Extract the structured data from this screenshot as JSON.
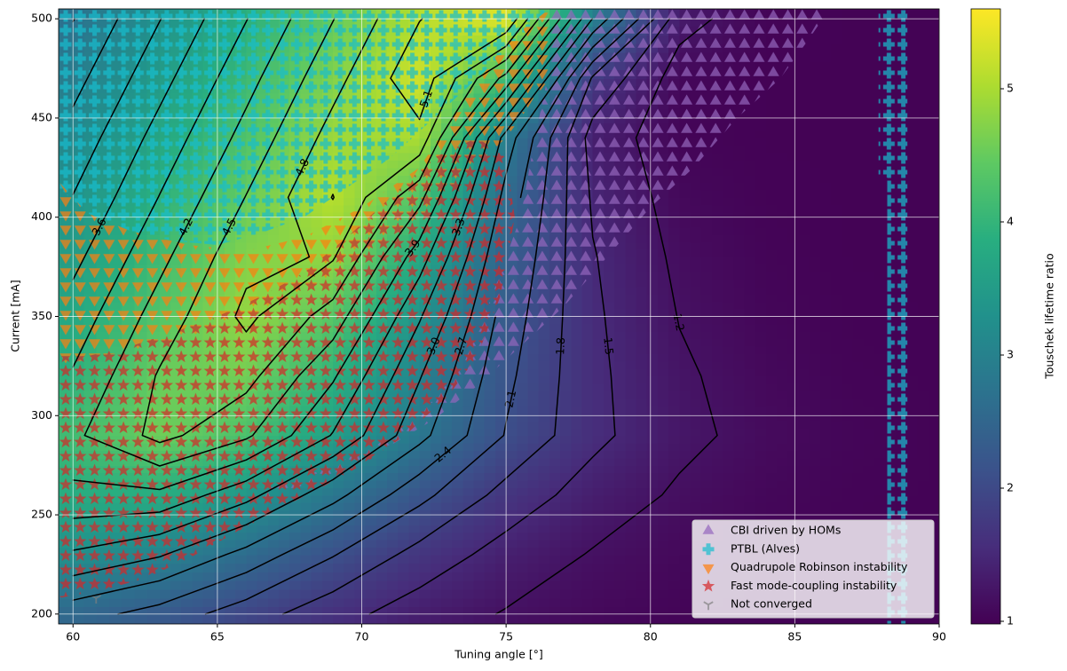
{
  "chart_data": {
    "type": "contour",
    "xlabel": "Tuning angle [°]",
    "ylabel": "Current [mA]",
    "colorbar_label": "Touschek lifetime ratio",
    "colormap": "viridis",
    "xlim": [
      59.5,
      90
    ],
    "ylim": [
      195,
      505
    ],
    "xticks": [
      60,
      65,
      70,
      75,
      80,
      85,
      90
    ],
    "yticks": [
      200,
      250,
      300,
      350,
      400,
      450,
      500
    ],
    "grid": true,
    "zlim": [
      0.98,
      5.6
    ],
    "zticks": [
      1,
      2,
      3,
      4,
      5
    ],
    "z_x": [
      60,
      63,
      66,
      69,
      72,
      75,
      78,
      81,
      84,
      87,
      90
    ],
    "z_y": [
      200,
      230,
      260,
      290,
      320,
      350,
      380,
      410,
      440,
      470,
      500
    ],
    "z": [
      [
        2.53,
        2.28,
        1.94,
        1.61,
        1.35,
        1.18,
        1.08,
        1.03,
        1.01,
        1.0,
        1.0
      ],
      [
        3.26,
        3.03,
        2.6,
        2.12,
        1.69,
        1.38,
        1.18,
        1.08,
        1.03,
        1.01,
        1.0
      ],
      [
        3.82,
        3.83,
        3.4,
        2.8,
        2.19,
        1.69,
        1.36,
        1.16,
        1.06,
        1.02,
        1.01
      ],
      [
        4.14,
        4.59,
        4.25,
        3.58,
        2.79,
        2.08,
        1.58,
        1.27,
        1.11,
        1.04,
        1.01
      ],
      [
        3.93,
        4.53,
        4.6,
        3.94,
        3.02,
        2.17,
        1.57,
        1.24,
        1.08,
        1.02,
        1.01
      ],
      [
        3.73,
        4.33,
        4.87,
        4.37,
        3.33,
        2.27,
        1.55,
        1.19,
        1.05,
        1.01,
        1.0
      ],
      [
        3.52,
        4.12,
        4.72,
        4.83,
        3.74,
        2.4,
        1.52,
        1.14,
        1.03,
        1.0,
        1.0
      ],
      [
        3.31,
        3.91,
        4.51,
        5.11,
        4.29,
        2.59,
        1.46,
        1.08,
        1.01,
        1.0,
        1.0
      ],
      [
        3.11,
        3.71,
        4.3,
        4.91,
        5.01,
        2.87,
        1.37,
        1.03,
        1.0,
        1.0,
        1.0
      ],
      [
        2.9,
        3.5,
        4.1,
        4.7,
        5.3,
        4.1,
        1.76,
        1.06,
        1.0,
        1.0,
        1.0
      ],
      [
        2.69,
        3.29,
        3.89,
        4.49,
        5.09,
        5.4,
        2.99,
        1.31,
        1.02,
        1.0,
        1.0
      ]
    ],
    "contour_levels": [
      1.2,
      1.5,
      1.8,
      2.1,
      2.4,
      2.7,
      {
        "value": 3,
        "label": "3.0"
      },
      3.3,
      3.6,
      3.9,
      4.2,
      4.5,
      4.8,
      5.1,
      5.4
    ],
    "contour_color": "#000000",
    "legend": "lower right",
    "series": [
      {
        "name": "CBI driven by HOMs",
        "color": "#9467bd",
        "marker": "^",
        "regions": [
          {
            "x": [
              76.5,
              86.2,
              85.5,
              84.5,
              83,
              81.5,
              80,
              78.5,
              77,
              75.5,
              74,
              72.5,
              71,
              69.5,
              68,
              66.5,
              66.5,
              68.5,
              70.5,
              72,
              73.5,
              74.5,
              75.5,
              76,
              76.5
            ],
            "y": [
              505,
              505,
              490,
              470,
              450,
              425,
              405,
              380,
              355,
              335,
              315,
              298,
              285,
              274,
              265,
              258,
              262,
              272,
              285,
              300,
              325,
              360,
              400,
              440,
              475
            ]
          }
        ]
      },
      {
        "name": "PTBL (Alves)",
        "color": "#17becf",
        "marker": "P",
        "regions": [
          {
            "x": [
              59.5,
              76.5,
              75.5,
              74,
              72.5,
              71,
              69.5,
              68,
              66.5,
              65,
              63.5,
              62,
              60.5,
              59.5
            ],
            "y": [
              505,
              505,
              490,
              470,
              450,
              430,
              415,
              400,
              392,
              386,
              388,
              393,
              402,
              415
            ]
          },
          {
            "x": [
              87.9,
              88.9,
              88.9,
              88.2,
              88.2,
              87.9
            ],
            "y": [
              505,
              505,
              195,
              195,
              420,
              420
            ]
          }
        ]
      },
      {
        "name": "Quadrupole Robinson instability",
        "color": "#ff7f0e",
        "marker": "v",
        "regions": [
          {
            "x": [
              59.5,
              60.5,
              62,
              64,
              66,
              68,
              70,
              72,
              73.5,
              75,
              76.5,
              76.5,
              75,
              73.5,
              72,
              70,
              68,
              66,
              64,
              62,
              59.5
            ],
            "y": [
              418,
              402,
              393,
              386,
              383,
              390,
              405,
              425,
              458,
              488,
              505,
              470,
              440,
              420,
              400,
              380,
              362,
              350,
              340,
              333,
              325
            ]
          }
        ]
      },
      {
        "name": "Fast mode-coupling instability",
        "color": "#d62728",
        "marker": "*",
        "regions": [
          {
            "x": [
              59.5,
              61,
              62.5,
              64,
              65.5,
              67,
              68.5,
              70,
              71.5,
              73,
              74,
              74.8,
              75.3,
              75,
              74,
              72.5,
              71,
              69.5,
              68,
              66.5,
              65,
              63.5,
              62,
              60.5,
              59.5
            ],
            "y": [
              208,
              212,
              218,
              228,
              240,
              252,
              263,
              275,
              290,
              310,
              330,
              360,
              400,
              430,
              440,
              430,
              410,
              390,
              372,
              360,
              350,
              342,
              335,
              330,
              330
            ]
          }
        ]
      },
      {
        "name": "Not converged",
        "color": "#7f7f7f",
        "marker": "1",
        "x": [
          60.8
        ],
        "y": [
          208
        ]
      }
    ]
  }
}
